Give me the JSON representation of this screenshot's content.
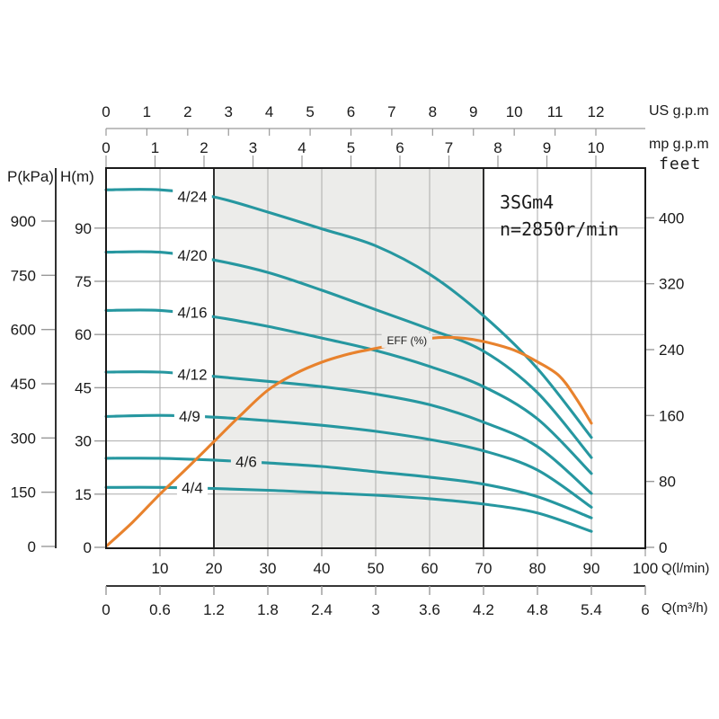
{
  "title": {
    "model": "3SGm4",
    "speed": "n=2850r/min"
  },
  "labels": {
    "top_axis_1_unit": "US g.p.m",
    "top_axis_2_unit": "mp g.p.m",
    "right_axis_unit": "feet",
    "left_axis_1_unit": "P(kPa)",
    "left_axis_2_unit": "H(m)",
    "bottom_axis_1_unit": "Q(l/min)",
    "bottom_axis_2_unit": "Q(m³/h)"
  },
  "colors": {
    "head_curve": "#2697a0",
    "efficiency_curve": "#e8822d",
    "duty_band_fill": "#ececea",
    "grid_line": "#ababab",
    "axis_black": "#1a1a1a",
    "tick_gray": "#999999",
    "text": "#1a1a1a",
    "page_bg": "#ffffff"
  },
  "chart_data": {
    "type": "line",
    "title": "3SGm4 n=2850r/min pump performance curves",
    "xlabel": "Q (l/min)",
    "ylabel": "H (m)",
    "x_range_lmin": [
      0,
      100
    ],
    "y_range_m": [
      0,
      107
    ],
    "duty_range_lmin": [
      20,
      70
    ],
    "grid": true,
    "axes": {
      "us_gpm_ticks": [
        0,
        1,
        2,
        3,
        4,
        5,
        6,
        7,
        8,
        9,
        10,
        11,
        12
      ],
      "imp_gpm_ticks": [
        0,
        1,
        2,
        3,
        4,
        5,
        6,
        7,
        8,
        9,
        10
      ],
      "feet_ticks": [
        400,
        320,
        240,
        160,
        80,
        0
      ],
      "kpa_ticks": [
        900,
        750,
        600,
        450,
        300,
        150,
        0
      ],
      "meter_ticks": [
        90,
        75,
        60,
        45,
        30,
        15,
        0
      ],
      "lmin_ticks": [
        10,
        20,
        30,
        40,
        50,
        60,
        70,
        80,
        90,
        100
      ],
      "m3h_ticks": [
        "0",
        "0.6",
        "1.2",
        "1.8",
        "2.4",
        "3",
        "3.6",
        "4.2",
        "4.8",
        "5.4",
        "6"
      ]
    },
    "series": [
      {
        "name": "4/24",
        "kind": "head",
        "label_at": [
          16,
          99.0
        ],
        "label_bg": "white",
        "points": [
          [
            0,
            100.8
          ],
          [
            10,
            100.8
          ],
          [
            20,
            98.8
          ],
          [
            30,
            94.5
          ],
          [
            40,
            89.8
          ],
          [
            50,
            85.0
          ],
          [
            60,
            77.0
          ],
          [
            70,
            65.3
          ],
          [
            80,
            50.4
          ],
          [
            90,
            31.0
          ]
        ]
      },
      {
        "name": "4/20",
        "kind": "head",
        "label_at": [
          16,
          82.3
        ],
        "label_bg": "white",
        "points": [
          [
            0,
            83.2
          ],
          [
            10,
            83.2
          ],
          [
            20,
            81.0
          ],
          [
            30,
            77.5
          ],
          [
            40,
            72.5
          ],
          [
            50,
            67.0
          ],
          [
            60,
            61.5
          ],
          [
            70,
            55.3
          ],
          [
            80,
            43.6
          ],
          [
            90,
            25.3
          ]
        ]
      },
      {
        "name": "4/16",
        "kind": "head",
        "label_at": [
          16,
          66.2
        ],
        "label_bg": "white",
        "points": [
          [
            0,
            66.8
          ],
          [
            10,
            66.8
          ],
          [
            20,
            65.0
          ],
          [
            30,
            62.3
          ],
          [
            40,
            59.0
          ],
          [
            50,
            55.5
          ],
          [
            60,
            51.0
          ],
          [
            70,
            45.3
          ],
          [
            80,
            36.2
          ],
          [
            90,
            20.8
          ]
        ]
      },
      {
        "name": "4/12",
        "kind": "head",
        "label_at": [
          16,
          48.8
        ],
        "label_bg": "white",
        "points": [
          [
            0,
            49.4
          ],
          [
            10,
            49.4
          ],
          [
            20,
            48.2
          ],
          [
            30,
            46.8
          ],
          [
            40,
            45.3
          ],
          [
            50,
            43.2
          ],
          [
            60,
            40.2
          ],
          [
            70,
            35.3
          ],
          [
            80,
            28.4
          ],
          [
            90,
            15.2
          ]
        ]
      },
      {
        "name": "4/9",
        "kind": "head",
        "label_at": [
          15.5,
          37.0
        ],
        "label_bg": "white",
        "points": [
          [
            0,
            36.9
          ],
          [
            10,
            37.2
          ],
          [
            20,
            36.7
          ],
          [
            30,
            35.7
          ],
          [
            40,
            34.4
          ],
          [
            50,
            32.7
          ],
          [
            60,
            30.4
          ],
          [
            70,
            27.2
          ],
          [
            80,
            21.8
          ],
          [
            90,
            11.3
          ]
        ]
      },
      {
        "name": "4/6",
        "kind": "head",
        "label_at": [
          26,
          24.2
        ],
        "label_bg": "band",
        "points": [
          [
            0,
            25.1
          ],
          [
            10,
            25.1
          ],
          [
            20,
            24.6
          ],
          [
            30,
            23.8
          ],
          [
            40,
            22.8
          ],
          [
            50,
            21.3
          ],
          [
            60,
            19.8
          ],
          [
            70,
            17.8
          ],
          [
            80,
            14.3
          ],
          [
            90,
            8.3
          ]
        ]
      },
      {
        "name": "4/4",
        "kind": "head",
        "label_at": [
          16,
          16.8
        ],
        "label_bg": "white",
        "points": [
          [
            0,
            16.9
          ],
          [
            10,
            16.9
          ],
          [
            20,
            16.6
          ],
          [
            30,
            16.1
          ],
          [
            40,
            15.4
          ],
          [
            50,
            14.7
          ],
          [
            60,
            13.7
          ],
          [
            70,
            12.2
          ],
          [
            80,
            9.7
          ],
          [
            90,
            4.5
          ]
        ]
      },
      {
        "name": "EFF (%)",
        "kind": "efficiency",
        "label_at": [
          55.8,
          58.3
        ],
        "label_bg": "band",
        "points": [
          [
            0.2,
            0.5
          ],
          [
            5,
            7.2
          ],
          [
            10,
            15.0
          ],
          [
            15,
            22.3
          ],
          [
            20,
            29.8
          ],
          [
            25,
            37.3
          ],
          [
            30,
            44.3
          ],
          [
            35,
            48.9
          ],
          [
            40,
            52.2
          ],
          [
            45,
            54.5
          ],
          [
            50,
            56.1
          ],
          [
            55,
            57.6
          ],
          [
            60,
            58.9
          ],
          [
            64,
            59.2
          ],
          [
            68,
            58.6
          ],
          [
            72,
            57.3
          ],
          [
            76,
            55.4
          ],
          [
            80,
            52.3
          ],
          [
            84,
            48.4
          ],
          [
            87,
            42.4
          ],
          [
            90,
            35.0
          ]
        ]
      }
    ]
  }
}
